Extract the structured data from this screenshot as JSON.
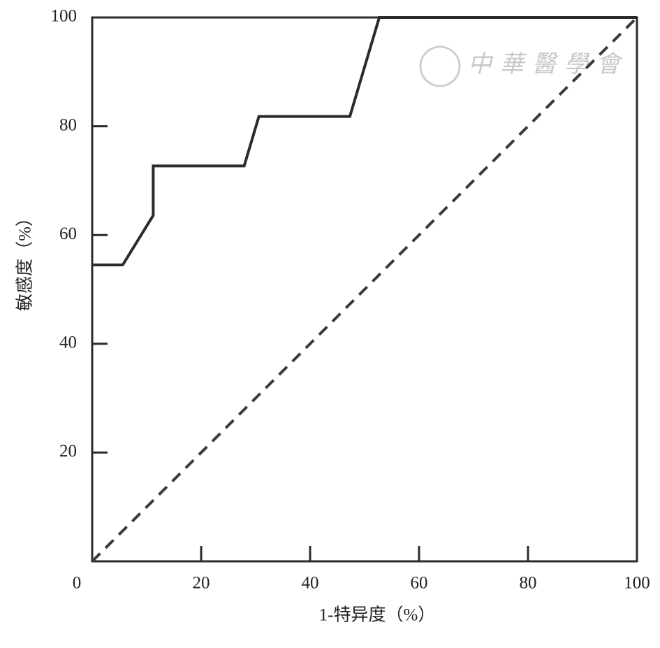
{
  "chart_data": {
    "type": "line",
    "xlabel": "1-特异度（%）",
    "ylabel": "敏感度（%）",
    "watermark": "中華醫學會",
    "xlim": [
      0,
      100
    ],
    "ylim": [
      0,
      100
    ],
    "xticks": [
      0,
      20,
      40,
      60,
      80,
      100
    ],
    "yticks": [
      20,
      40,
      60,
      80,
      100
    ],
    "series": [
      {
        "color": "#2b2b2b",
        "dashed": false,
        "x": [
          0,
          5.6,
          11.2,
          11.2,
          27.9,
          30.6,
          47.3,
          52.7,
          100
        ],
        "values": [
          54.5,
          54.5,
          63.6,
          72.7,
          72.7,
          81.8,
          81.8,
          100,
          100
        ]
      },
      {
        "color": "#3a3a3a",
        "dashed": true,
        "x": [
          0,
          100
        ],
        "values": [
          0,
          100
        ]
      }
    ]
  }
}
